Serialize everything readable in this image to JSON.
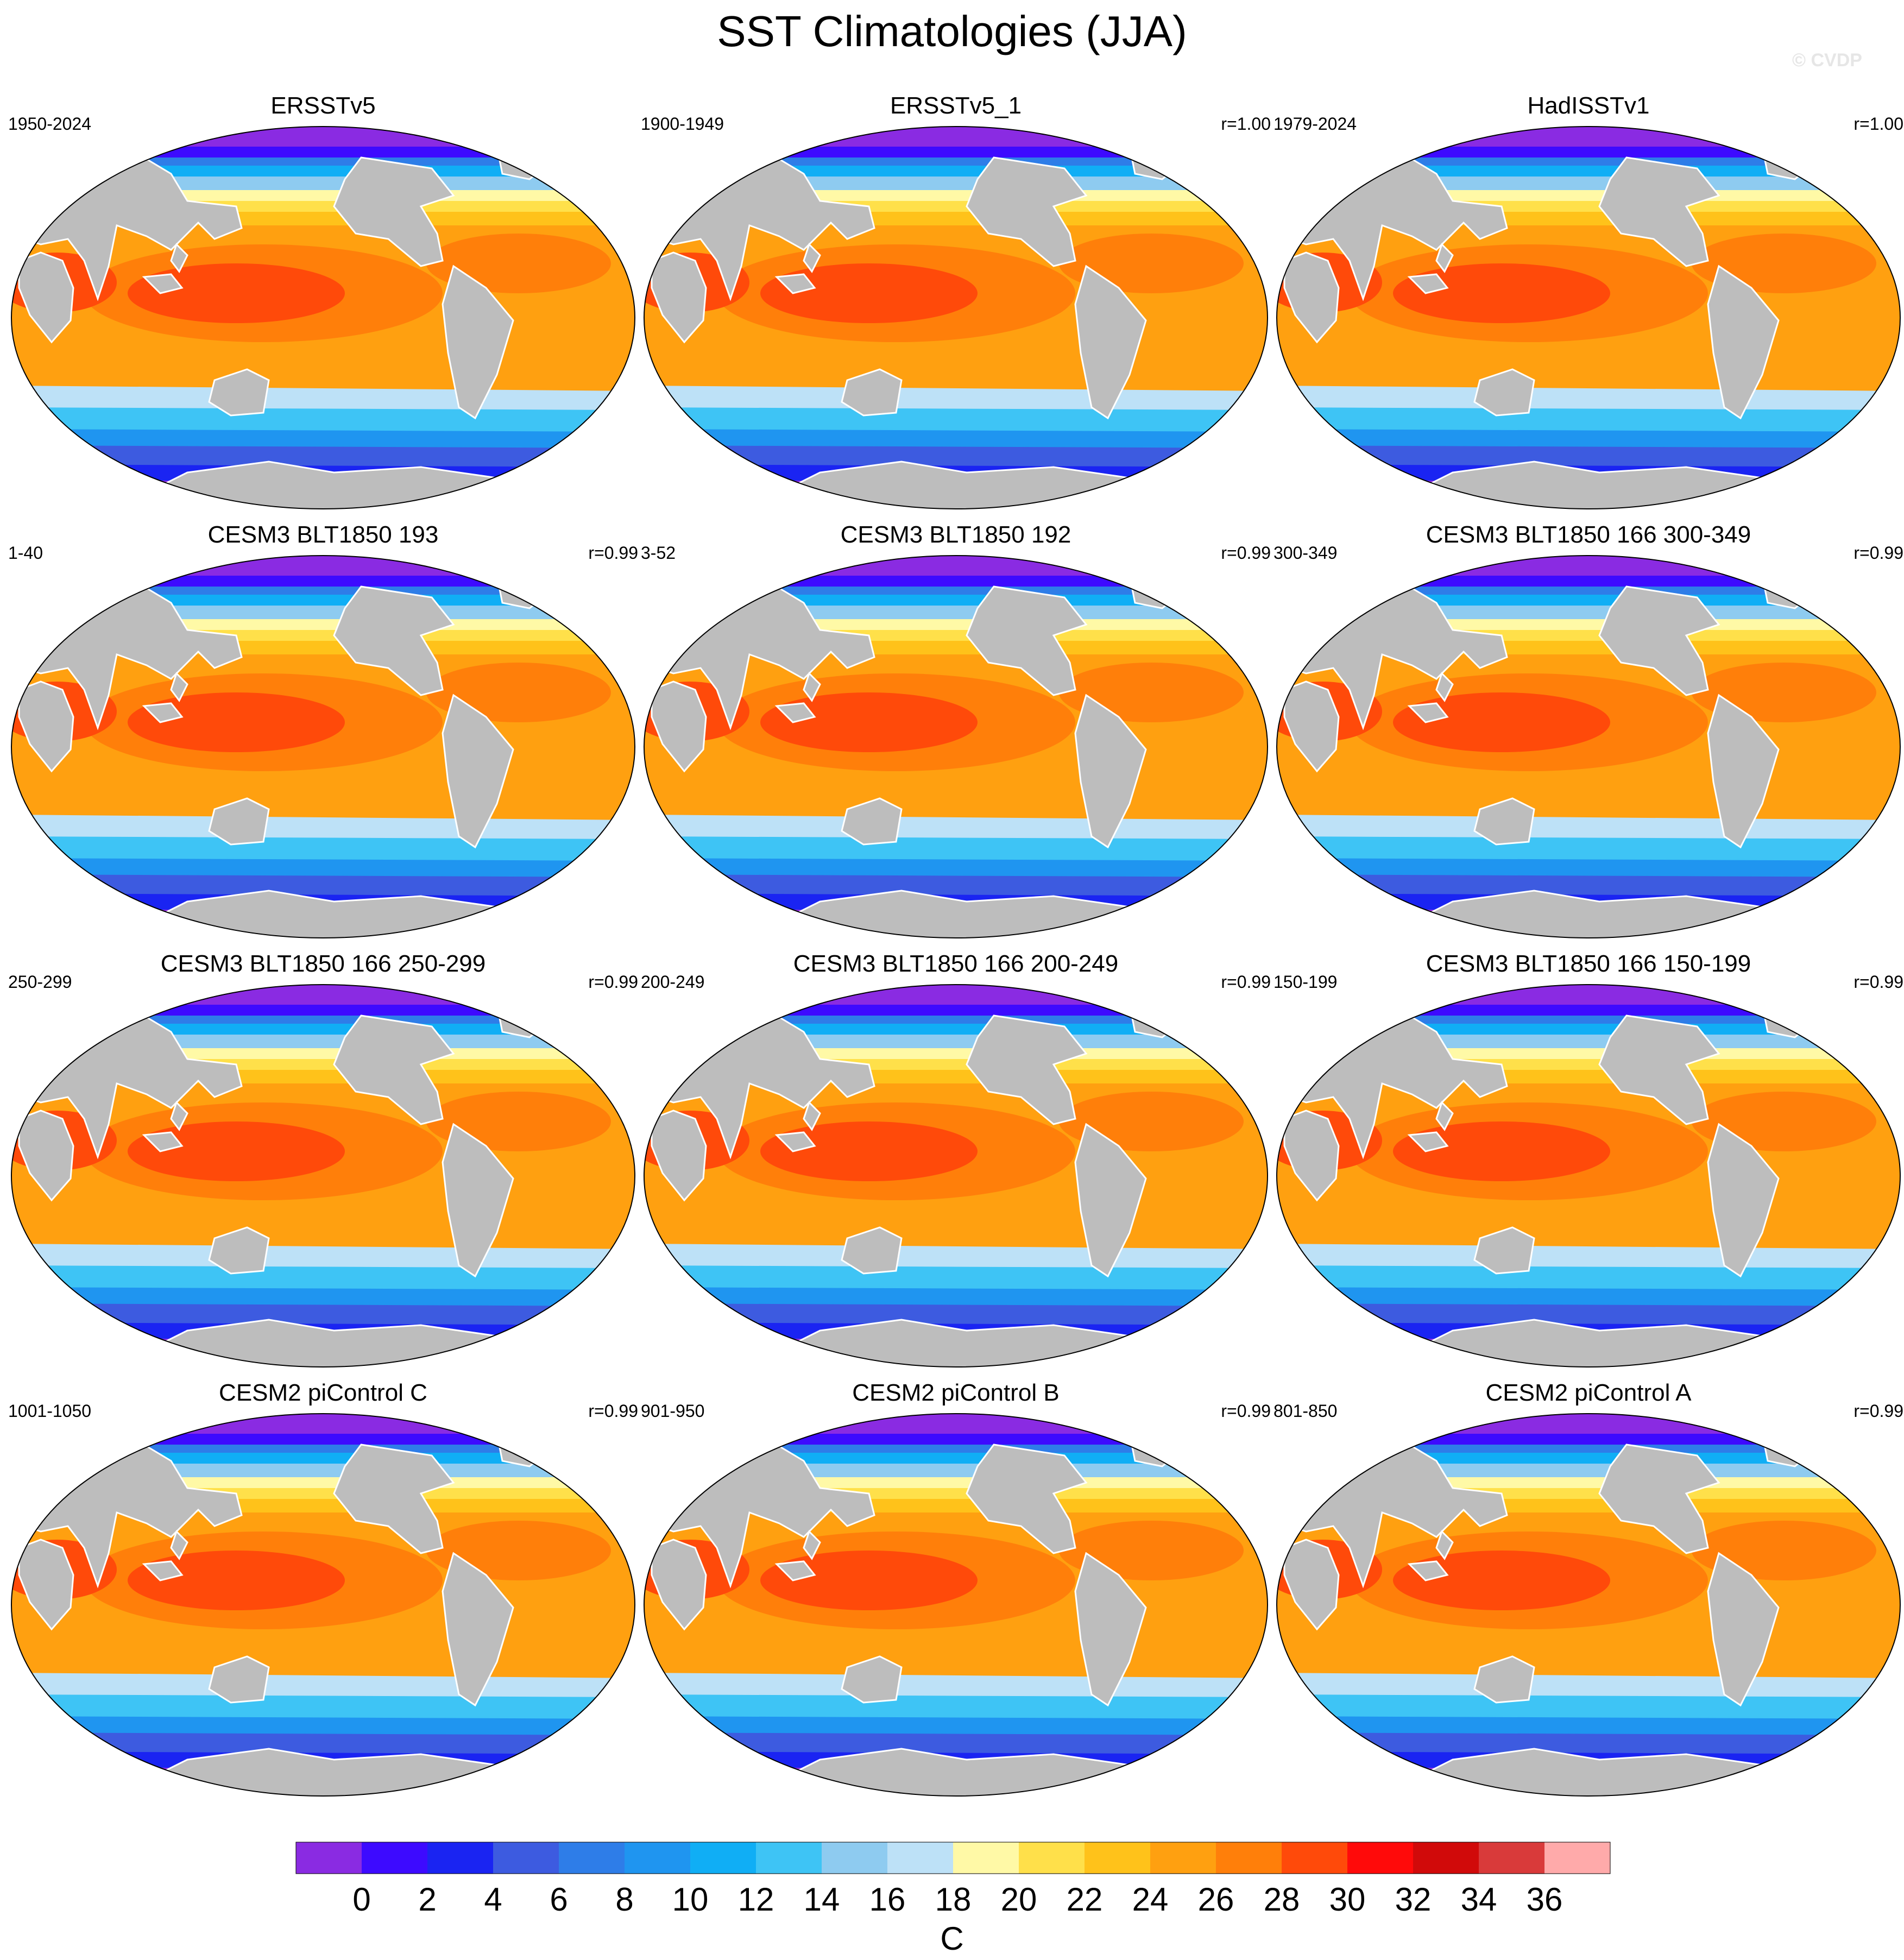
{
  "title": "SST Climatologies (JJA)",
  "watermark": "© CVDP",
  "colorbar": {
    "unit": "C",
    "ticks": [
      "0",
      "2",
      "4",
      "6",
      "8",
      "10",
      "12",
      "14",
      "16",
      "18",
      "20",
      "22",
      "24",
      "26",
      "28",
      "30",
      "32",
      "34",
      "36"
    ],
    "colors": [
      "#8a2be2",
      "#3d0aff",
      "#1a24f2",
      "#3d5be0",
      "#2e7de8",
      "#1f95f0",
      "#10aef5",
      "#3ec4f5",
      "#8ecbf0",
      "#bde1f7",
      "#fff9a6",
      "#ffe04a",
      "#ffc21a",
      "#ffa010",
      "#ff7f0a",
      "#ff4a0a",
      "#ff0a0a",
      "#d10a0a",
      "#d93a3a",
      "#ffaaaa"
    ]
  },
  "panels": [
    {
      "title": "ERSSTv5",
      "period": "1950-2024",
      "corr": ""
    },
    {
      "title": "ERSSTv5_1",
      "period": "1900-1949",
      "corr": "r=1.00"
    },
    {
      "title": "HadISSTv1",
      "period": "1979-2024",
      "corr": "r=1.00"
    },
    {
      "title": "CESM3 BLT1850 193",
      "period": "1-40",
      "corr": "r=0.99"
    },
    {
      "title": "CESM3 BLT1850 192",
      "period": "3-52",
      "corr": "r=0.99"
    },
    {
      "title": "CESM3 BLT1850 166 300-349",
      "period": "300-349",
      "corr": "r=0.99"
    },
    {
      "title": "CESM3 BLT1850 166 250-299",
      "period": "250-299",
      "corr": "r=0.99"
    },
    {
      "title": "CESM3 BLT1850 166 200-249",
      "period": "200-249",
      "corr": "r=0.99"
    },
    {
      "title": "CESM3 BLT1850 166 150-199",
      "period": "150-199",
      "corr": "r=0.99"
    },
    {
      "title": "CESM2 piControl C",
      "period": "1001-1050",
      "corr": "r=0.99"
    },
    {
      "title": "CESM2 piControl B",
      "period": "901-950",
      "corr": "r=0.99"
    },
    {
      "title": "CESM2 piControl A",
      "period": "801-850",
      "corr": "r=0.99"
    }
  ]
}
